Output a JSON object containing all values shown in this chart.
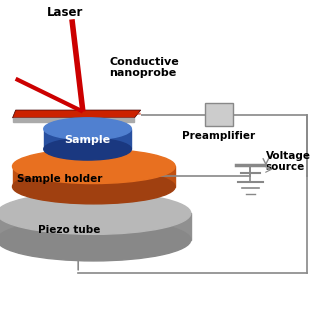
{
  "background_color": "#ffffff",
  "labels": {
    "laser": "Laser",
    "nanoprobe": "Conductive\nnanoprobe",
    "sample": "Sample",
    "sample_holder": "Sample holder",
    "piezo_tube": "Piezo tube",
    "preamplifier": "Preamplifier",
    "voltage_source": "Voltage\nsource"
  },
  "colors": {
    "laser_beam": "#cc0000",
    "cantilever_top": "#cc2200",
    "cantilever_side": "#888888",
    "sample_blue_top": "#5080d0",
    "sample_blue_side": "#2850a0",
    "sample_holder_top": "#e87020",
    "sample_holder_side": "#c05010",
    "piezo_top": "#b8b8b8",
    "piezo_side": "#909090",
    "preamplifier_fill": "#cccccc",
    "preamplifier_edge": "#888888",
    "wire": "#888888",
    "text": "#000000"
  }
}
